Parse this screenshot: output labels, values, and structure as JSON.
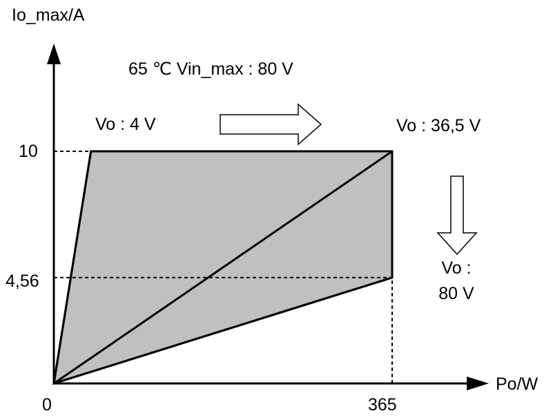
{
  "chart_data": {
    "type": "area",
    "xlabel": "Po/W",
    "ylabel": "Io_max/A",
    "xlim": [
      0,
      365
    ],
    "ylim": [
      0,
      10
    ],
    "x_ticks": [
      "0",
      "365"
    ],
    "y_ticks": [
      "10",
      "4,56"
    ],
    "colors": {
      "region_fill": "#c0c0c0",
      "lines": "#000000",
      "arrow_fill": "#ffffff"
    },
    "region": {
      "vertices": [
        {
          "x": 0,
          "y": 0
        },
        {
          "x": 40,
          "y": 10
        },
        {
          "x": 365,
          "y": 10
        },
        {
          "x": 365,
          "y": 4.56
        }
      ]
    },
    "series": [
      {
        "name": "Vo : 4 V",
        "points": [
          {
            "x": 0,
            "y": 0
          },
          {
            "x": 40,
            "y": 10
          }
        ]
      },
      {
        "name": "Vo : 36,5 V",
        "points": [
          {
            "x": 0,
            "y": 0
          },
          {
            "x": 365,
            "y": 10
          }
        ]
      },
      {
        "name": "Vo : 80 V",
        "points": [
          {
            "x": 0,
            "y": 0
          },
          {
            "x": 365,
            "y": 4.56
          }
        ]
      }
    ],
    "reference_lines": [
      {
        "from": {
          "x": 0,
          "y": 10
        },
        "to": {
          "x": 40,
          "y": 10
        }
      },
      {
        "from": {
          "x": 0,
          "y": 4.56
        },
        "to": {
          "x": 365,
          "y": 4.56
        }
      },
      {
        "from": {
          "x": 365,
          "y": 0
        },
        "to": {
          "x": 365,
          "y": 4.56
        }
      }
    ],
    "annotations": {
      "condition": "65 ℃ Vin_max : 80 V",
      "vo_low": "Vo : 4 V",
      "vo_mid": "Vo : 36,5 V",
      "vo_high_line1": "Vo :",
      "vo_high_line2": "80 V"
    },
    "grid": false,
    "legend": "none"
  }
}
